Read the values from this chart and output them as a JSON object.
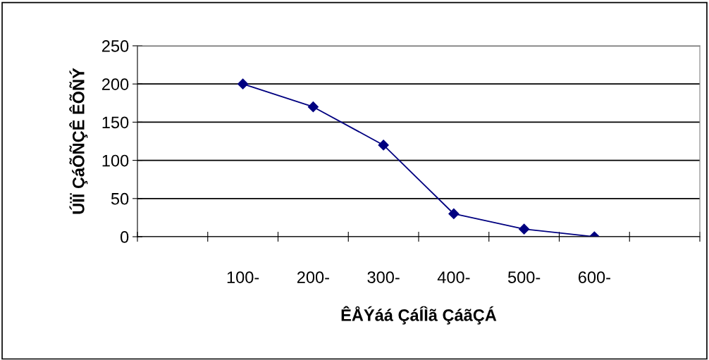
{
  "chart_data": {
    "type": "line",
    "xlabel": "ÊÅÝáá ÇáÍÌã ÇáãÇÁ",
    "ylabel": "ÚÏÏ ÇáÕÑÇÊ ÊÕÑÝ",
    "categories": [
      null,
      "100-",
      "200-",
      "300-",
      "400-",
      "500-",
      "600-",
      null
    ],
    "series": [
      {
        "color": "#000080",
        "values": [
          null,
          200,
          170,
          120,
          30,
          10,
          0,
          null
        ]
      }
    ],
    "ylim": [
      0,
      250
    ],
    "yticks": [
      0,
      50,
      100,
      150,
      200,
      250
    ],
    "grid": "y",
    "marker": "diamond",
    "line_style": "solid",
    "legend": false
  }
}
